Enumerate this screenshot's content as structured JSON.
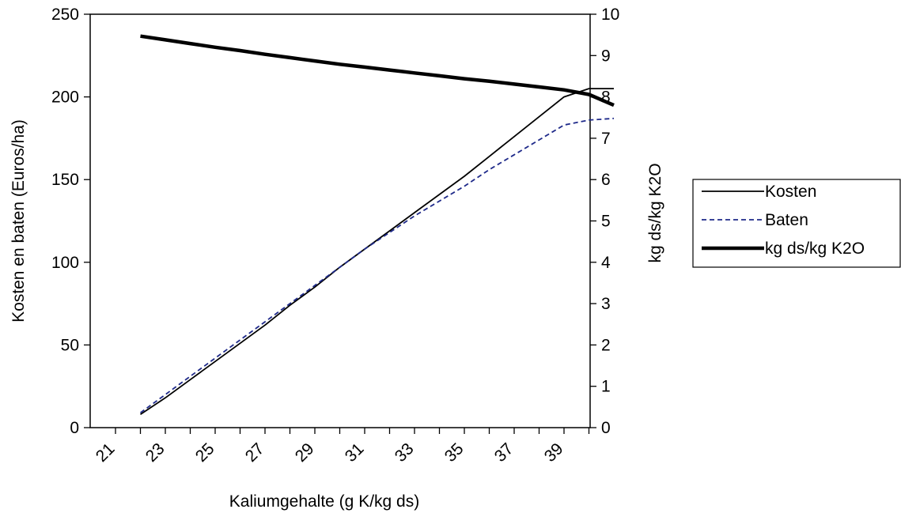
{
  "chart_data": {
    "type": "line",
    "xlabel": "Kaliumgehalte (g K/kg ds)",
    "ylabel_left": "Kosten en baten (Euros/ha)",
    "ylabel_right": "kg ds/kg K2O",
    "x_range": [
      21,
      41
    ],
    "x_tick_labels": [
      "21",
      "23",
      "25",
      "27",
      "29",
      "31",
      "33",
      "35",
      "37",
      "39"
    ],
    "x_tick_values": [
      21,
      23,
      25,
      27,
      29,
      31,
      33,
      35,
      37,
      39
    ],
    "ylim_left": [
      0,
      250
    ],
    "yticks_left": [
      "0",
      "50",
      "100",
      "150",
      "200",
      "250"
    ],
    "ylim_right": [
      0,
      10
    ],
    "yticks_right": [
      "0",
      "1",
      "2",
      "3",
      "4",
      "5",
      "6",
      "7",
      "8",
      "9",
      "10"
    ],
    "grid": false,
    "legend_position": "right",
    "series": [
      {
        "name": "Kosten",
        "axis": "left",
        "style": "solid-thin",
        "color": "#000000",
        "x": [
          22,
          23,
          24,
          25,
          26,
          27,
          28,
          29,
          30,
          31,
          32,
          33,
          34,
          35,
          36,
          37,
          38,
          39,
          40,
          41
        ],
        "y": [
          8,
          18,
          29,
          40,
          51,
          62,
          74,
          85,
          97,
          108,
          119,
          130,
          141,
          152,
          164,
          176,
          188,
          200,
          205,
          205
        ]
      },
      {
        "name": "Baten",
        "axis": "left",
        "style": "dashed",
        "color": "#1f2a8a",
        "x": [
          22,
          23,
          24,
          25,
          26,
          27,
          28,
          29,
          30,
          31,
          32,
          33,
          34,
          35,
          36,
          37,
          38,
          39,
          40,
          41
        ],
        "y": [
          9,
          20,
          31,
          42,
          53,
          64,
          75,
          86,
          97,
          108,
          118,
          128,
          137,
          146,
          156,
          165,
          174,
          183,
          186,
          187
        ]
      },
      {
        "name": "kg ds/kg K2O",
        "axis": "right",
        "style": "solid-thick",
        "color": "#000000",
        "x": [
          22,
          23,
          24,
          25,
          26,
          27,
          28,
          29,
          30,
          31,
          32,
          33,
          34,
          35,
          36,
          37,
          38,
          39,
          40,
          41
        ],
        "y": [
          9.47,
          9.38,
          9.29,
          9.2,
          9.12,
          9.03,
          8.95,
          8.87,
          8.79,
          8.72,
          8.65,
          8.58,
          8.51,
          8.44,
          8.38,
          8.31,
          8.24,
          8.17,
          8.06,
          7.8
        ]
      }
    ]
  }
}
